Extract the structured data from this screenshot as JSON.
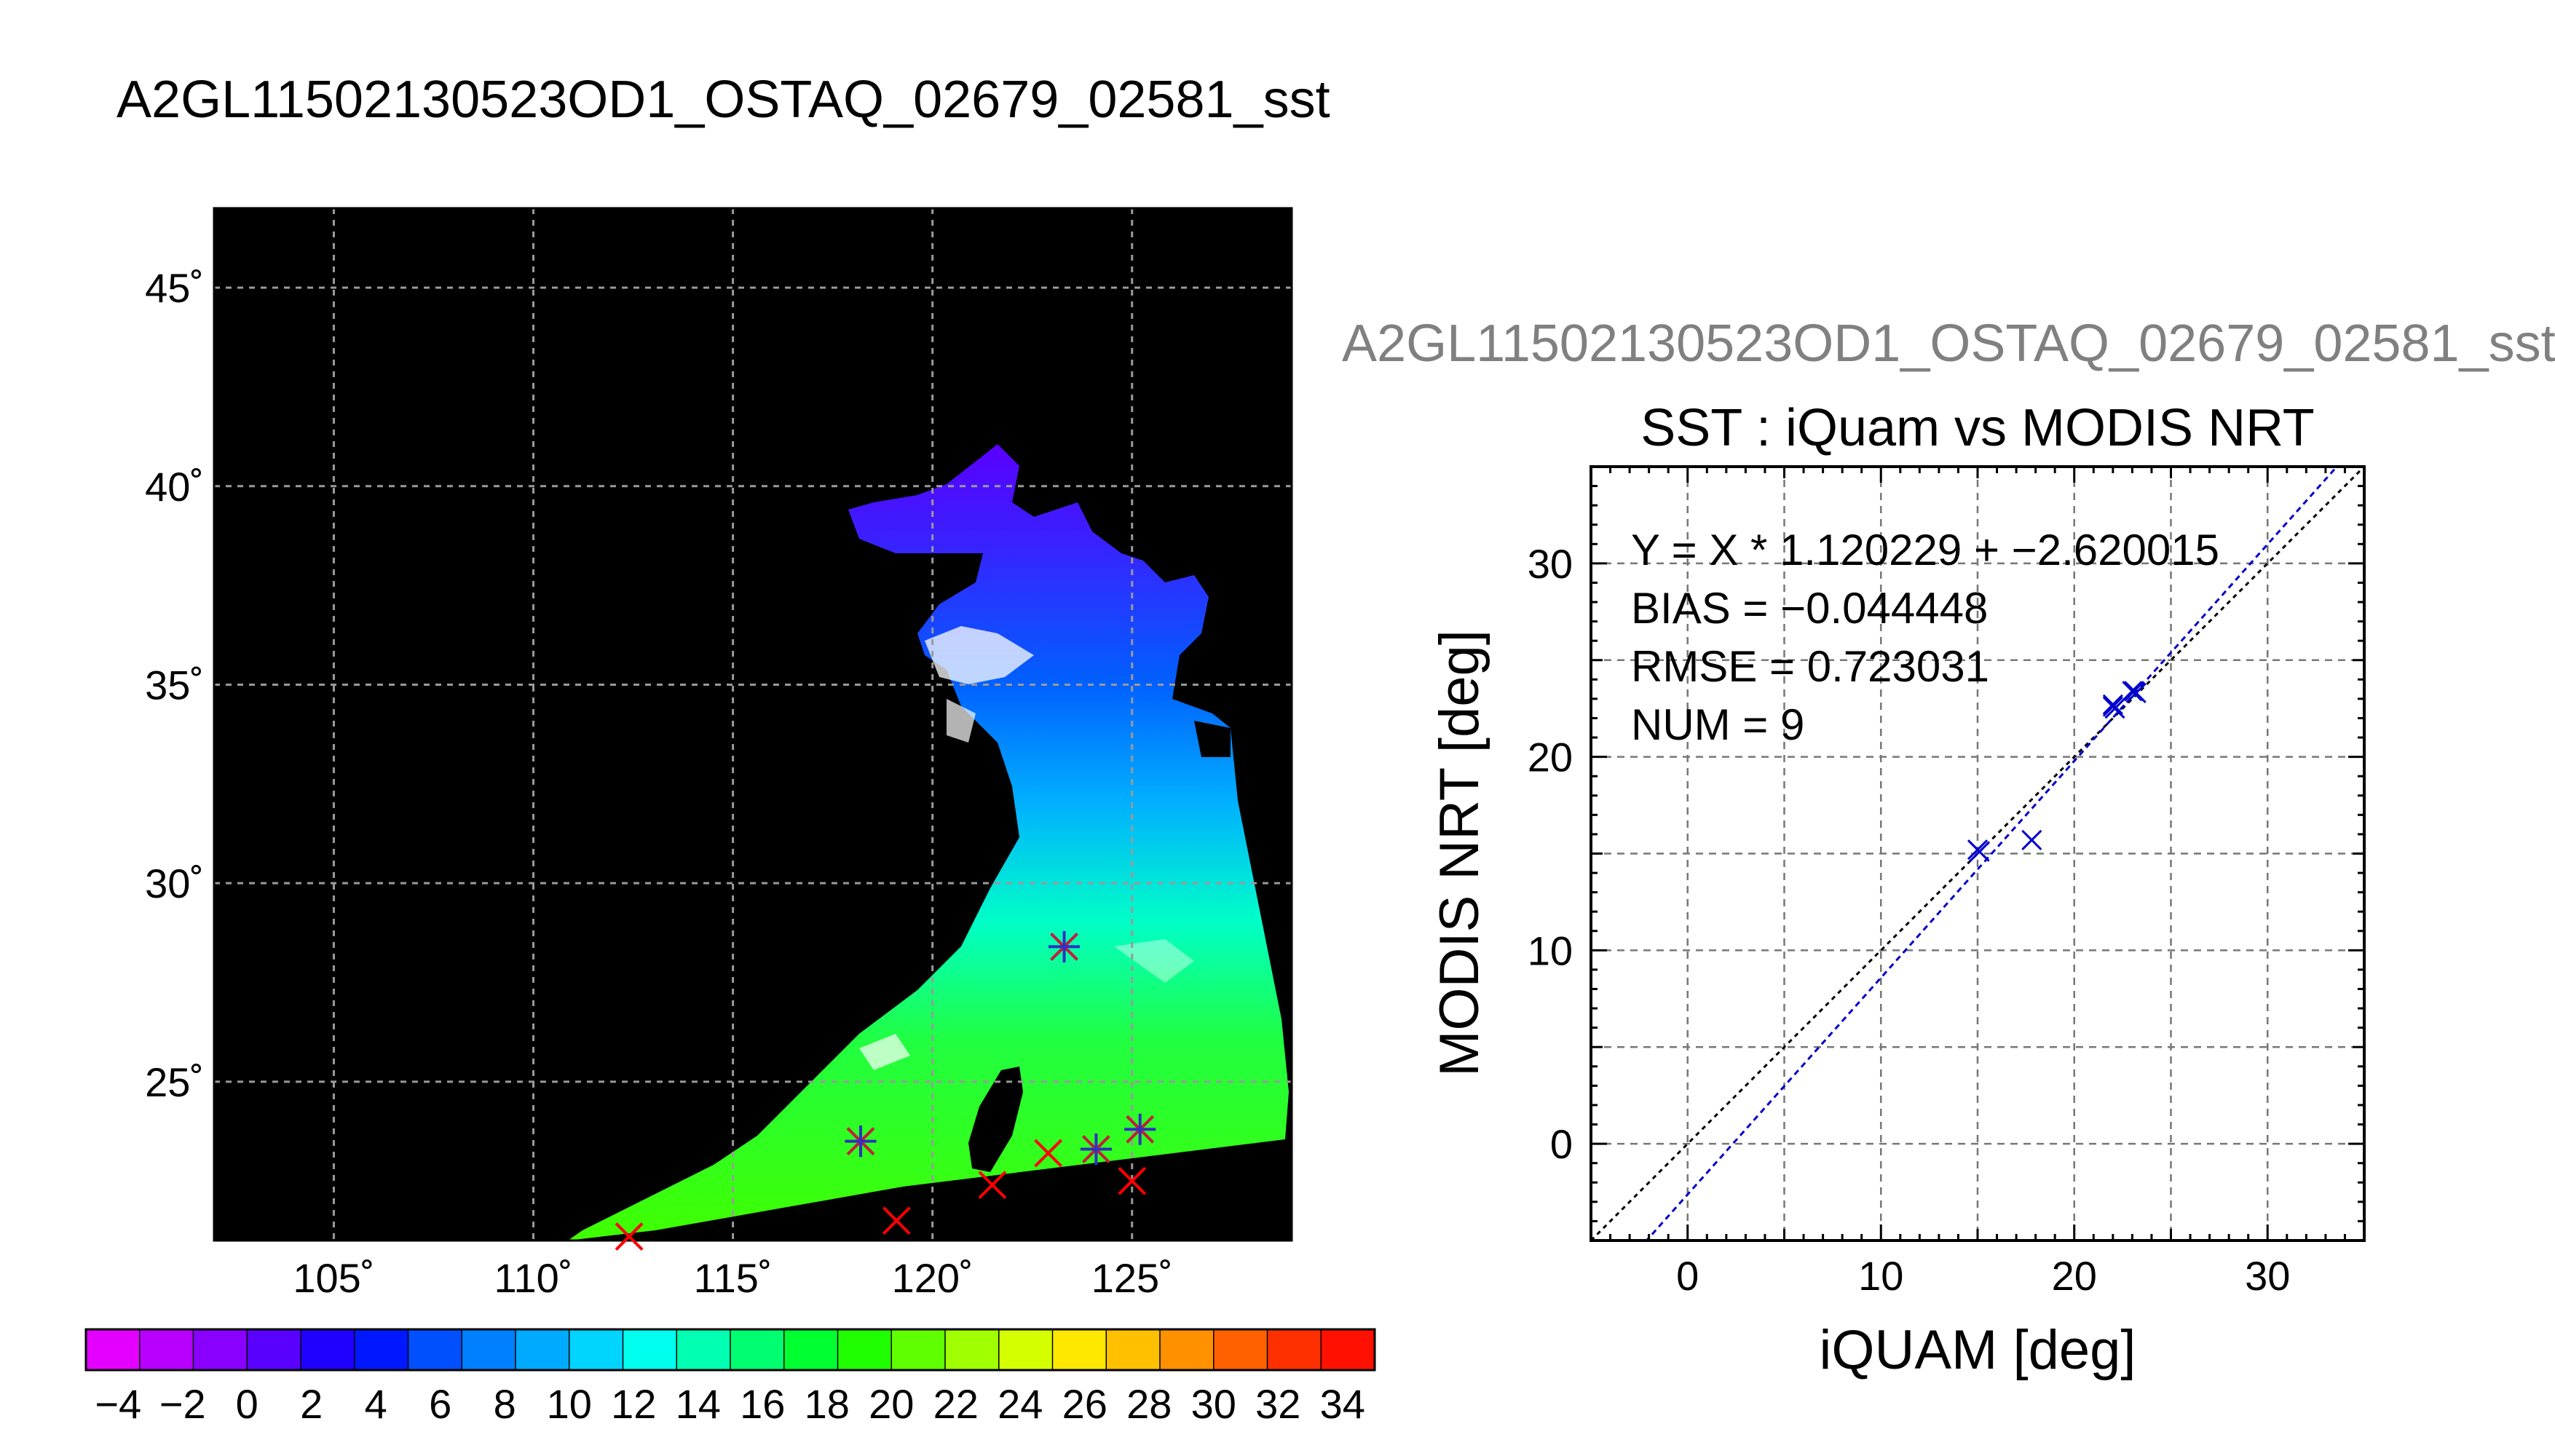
{
  "page": {
    "title": "A2GL11502130523OD1_OSTAQ_02679_02581_sst"
  },
  "map": {
    "lon_range": [
      102,
      129
    ],
    "lat_range": [
      21,
      47
    ],
    "lon_ticks": [
      105,
      110,
      115,
      120,
      125
    ],
    "lat_ticks": [
      45,
      40,
      35,
      30,
      25
    ],
    "lon_tick_labels": [
      "105˚",
      "110˚",
      "115˚",
      "120˚",
      "125˚"
    ],
    "lat_tick_labels": [
      "45˚",
      "40˚",
      "35˚",
      "30˚",
      "25˚"
    ],
    "grid": true,
    "background_color": "#000000",
    "markers": [
      {
        "lon": 123.3,
        "lat": 28.4,
        "symbol": "asterisk"
      },
      {
        "lon": 118.2,
        "lat": 23.5,
        "symbol": "asterisk"
      },
      {
        "lon": 124.1,
        "lat": 23.3,
        "symbol": "asterisk"
      },
      {
        "lon": 125.2,
        "lat": 23.8,
        "symbol": "asterisk"
      },
      {
        "lon": 122.9,
        "lat": 23.2,
        "symbol": "cross"
      },
      {
        "lon": 121.5,
        "lat": 22.4,
        "symbol": "cross"
      },
      {
        "lon": 125.0,
        "lat": 22.5,
        "symbol": "cross"
      },
      {
        "lon": 119.1,
        "lat": 21.5,
        "symbol": "cross"
      },
      {
        "lon": 112.4,
        "lat": 21.1,
        "symbol": "cross"
      }
    ]
  },
  "colorbar": {
    "min": -5,
    "max": 35,
    "tick_labels": [
      "−4",
      "−2",
      "0",
      "2",
      "4",
      "6",
      "8",
      "10",
      "12",
      "14",
      "16",
      "18",
      "20",
      "22",
      "24",
      "26",
      "28",
      "30",
      "32",
      "34"
    ],
    "colors": [
      "#e400ff",
      "#b800ff",
      "#8a00ff",
      "#5a00ff",
      "#2000ff",
      "#0018ff",
      "#0050ff",
      "#0080ff",
      "#00aaff",
      "#00d4ff",
      "#00ffee",
      "#00ffb0",
      "#00ff70",
      "#00ff30",
      "#20ff00",
      "#60ff00",
      "#a0ff00",
      "#d4ff00",
      "#ffe800",
      "#ffc000",
      "#ff9000",
      "#ff6000",
      "#ff3000",
      "#ff1000"
    ]
  },
  "scatter": {
    "title": "A2GL11502130523OD1_OSTAQ_02679_02581_sst",
    "chart_title": "SST : iQuam vs MODIS NRT",
    "stats": {
      "equation": "Y = X * 1.120229 + −2.620015",
      "bias": "BIAS = −0.044448",
      "rmse": "RMSE = 0.723031",
      "num": "NUM = 9"
    },
    "xlabel": "iQUAM [deg]",
    "ylabel": "MODIS NRT [deg]",
    "xticks": [
      "0",
      "10",
      "20",
      "30"
    ],
    "yticks": [
      "0",
      "10",
      "20",
      "30"
    ],
    "colors": {
      "points": "#0000cc",
      "fit_line": "#0000cc",
      "identity_line": "#000000",
      "grid": "#777777"
    }
  },
  "chart_data": {
    "type": "scatter",
    "title": "SST : iQuam vs MODIS NRT",
    "xlabel": "iQUAM [deg]",
    "ylabel": "MODIS NRT [deg]",
    "xlim": [
      -5,
      35
    ],
    "ylim": [
      -5,
      35
    ],
    "grid": true,
    "x": [
      15.1,
      17.8,
      22.0,
      22.1,
      23.1,
      23.2,
      22.0,
      23.0,
      15.0
    ],
    "y": [
      15.1,
      15.7,
      22.6,
      22.5,
      23.4,
      23.3,
      22.7,
      23.4,
      15.2
    ],
    "fit": {
      "slope": 1.120229,
      "intercept": -2.620015
    },
    "identity": true
  }
}
